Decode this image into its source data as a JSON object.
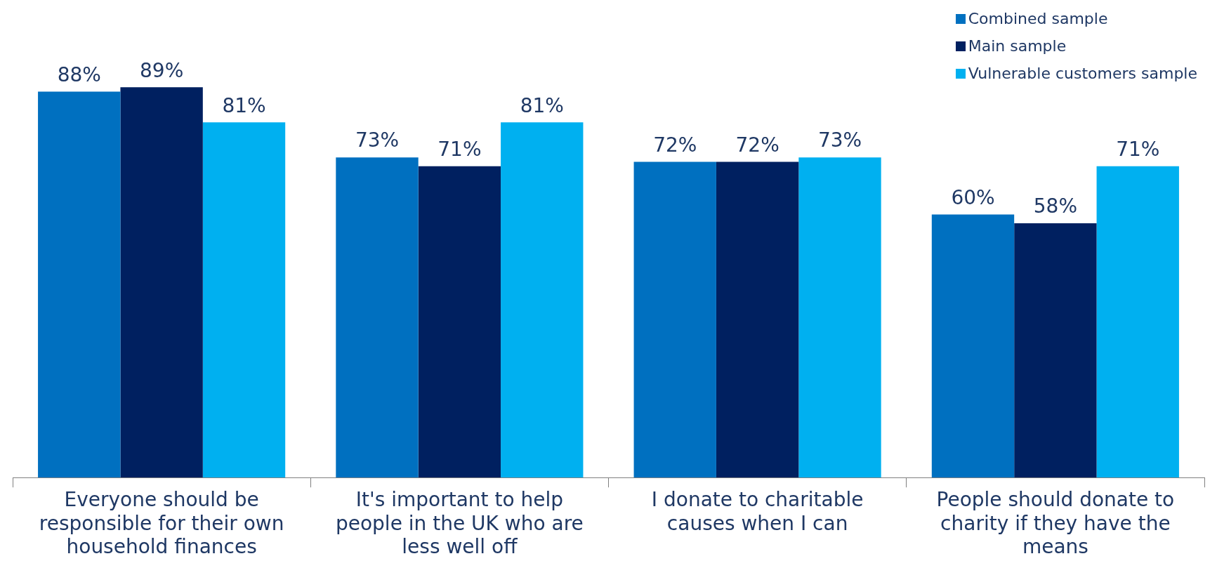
{
  "chart_data": {
    "type": "bar",
    "categories": [
      "Everyone should be responsible for their own household finances",
      "It's important to help people in the UK who are less well off",
      "I donate to charitable causes when I can",
      "People should donate to charity if they have the means"
    ],
    "series": [
      {
        "name": "Combined sample",
        "color": "#0070c0",
        "values": [
          88,
          73,
          72,
          60
        ],
        "value_labels": [
          "88%",
          "73%",
          "72%",
          "60%"
        ]
      },
      {
        "name": "Main sample",
        "color": "#002060",
        "values": [
          89,
          71,
          72,
          58
        ],
        "value_labels": [
          "89%",
          "71%",
          "72%",
          "58%"
        ]
      },
      {
        "name": "Vulnerable customers sample",
        "color": "#00b0f0",
        "values": [
          81,
          81,
          73,
          71
        ],
        "value_labels": [
          "81%",
          "81%",
          "73%",
          "71%"
        ]
      }
    ],
    "legend": "top right"
  }
}
